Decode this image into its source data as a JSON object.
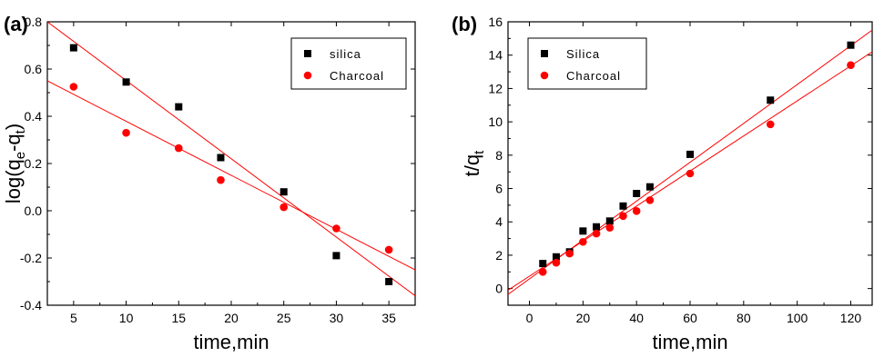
{
  "chart_data": [
    {
      "type": "scatter",
      "panel_label": "(a)",
      "xlabel": "time,min",
      "ylabel": "log(q_e-q_t)",
      "xlim": [
        2.5,
        37.5
      ],
      "ylim": [
        -0.4,
        0.8
      ],
      "xticks": [
        5,
        10,
        15,
        20,
        25,
        30,
        35
      ],
      "yticks": [
        -0.4,
        -0.2,
        0.0,
        0.2,
        0.4,
        0.6,
        0.8
      ],
      "ytick_labels": [
        "-0.4",
        "-0.2",
        "0.0",
        "0.2",
        "0.4",
        "0.6",
        "0.8"
      ],
      "legend_position": "top-right",
      "series": [
        {
          "name": "silica",
          "marker": "square",
          "color": "#000000",
          "x": [
            5,
            10,
            15,
            19,
            25,
            30,
            35
          ],
          "y": [
            0.69,
            0.545,
            0.44,
            0.225,
            0.08,
            -0.19,
            -0.3
          ],
          "fit": [
            [
              2.5,
              0.8
            ],
            [
              37.5,
              -0.36
            ]
          ]
        },
        {
          "name": "Charcoal",
          "marker": "circle",
          "color": "#ff0000",
          "x": [
            5,
            10,
            15,
            19,
            25,
            30,
            35
          ],
          "y": [
            0.525,
            0.33,
            0.265,
            0.13,
            0.015,
            -0.075,
            -0.165
          ],
          "fit": [
            [
              2.5,
              0.55
            ],
            [
              37.5,
              -0.25
            ]
          ]
        }
      ]
    },
    {
      "type": "scatter",
      "panel_label": "(b)",
      "xlabel": "time,min",
      "ylabel": "t/q_t",
      "xlim": [
        -8,
        128
      ],
      "ylim": [
        -1,
        16
      ],
      "xticks": [
        0,
        20,
        40,
        60,
        80,
        100,
        120
      ],
      "yticks": [
        0,
        2,
        4,
        6,
        8,
        10,
        12,
        14,
        16
      ],
      "ytick_labels": [
        "0",
        "2",
        "4",
        "6",
        "8",
        "10",
        "12",
        "14",
        "16"
      ],
      "legend_position": "top-left",
      "series": [
        {
          "name": "Silica",
          "marker": "square",
          "color": "#000000",
          "x": [
            5,
            10,
            15,
            20,
            25,
            30,
            35,
            40,
            45,
            60,
            90,
            120
          ],
          "y": [
            1.5,
            1.9,
            2.2,
            3.45,
            3.7,
            4.05,
            4.95,
            5.7,
            6.1,
            8.05,
            11.3,
            14.6
          ],
          "fit": [
            [
              -8,
              -0.35
            ],
            [
              128,
              15.5
            ]
          ]
        },
        {
          "name": "Charcoal",
          "marker": "circle",
          "color": "#ff0000",
          "x": [
            5,
            10,
            15,
            20,
            25,
            30,
            35,
            40,
            45,
            60,
            90,
            120
          ],
          "y": [
            1.0,
            1.55,
            2.1,
            2.8,
            3.3,
            3.65,
            4.35,
            4.65,
            5.3,
            6.9,
            9.85,
            13.4
          ],
          "fit": [
            [
              -8,
              -0.1
            ],
            [
              128,
              14.2
            ]
          ]
        }
      ]
    }
  ]
}
